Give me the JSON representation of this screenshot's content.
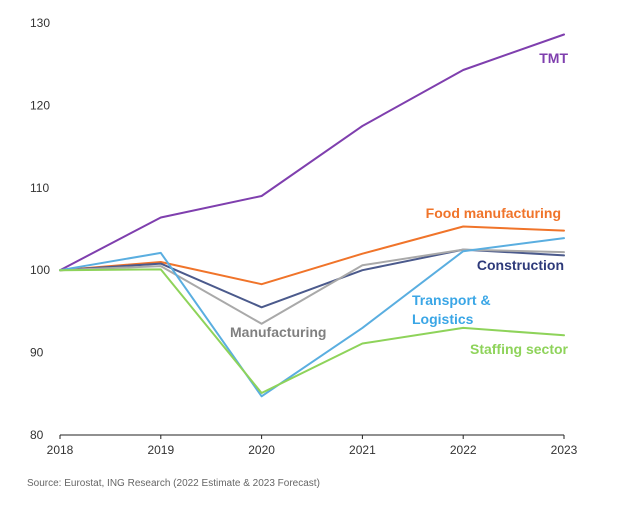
{
  "chart_data": {
    "type": "line",
    "title": "",
    "xlabel": "",
    "ylabel": "",
    "x": [
      "2018",
      "2019",
      "2020",
      "2021",
      "2022",
      "2023"
    ],
    "ylim": [
      80,
      130
    ],
    "yticks": [
      "80",
      "90",
      "100",
      "110",
      "120",
      "130"
    ],
    "grid": false,
    "series": [
      {
        "name": "TMT",
        "color": "#7f3fae",
        "values": [
          100,
          106.4,
          109,
          117.5,
          124.3,
          128.6
        ]
      },
      {
        "name": "Food manufacturing",
        "color": "#f0742a",
        "values": [
          100,
          101,
          98.3,
          102,
          105.3,
          104.8
        ]
      },
      {
        "name": "Construction",
        "color": "#4b5a8c",
        "values": [
          100,
          100.8,
          95.5,
          100,
          102.5,
          101.8
        ]
      },
      {
        "name": "Manufacturing",
        "color": "#a9a9a9",
        "values": [
          100,
          100.5,
          93.5,
          100.6,
          102.5,
          102.2
        ]
      },
      {
        "name": "Transport  & Logistics",
        "color": "#5aaee0",
        "values": [
          100,
          102.1,
          84.7,
          93,
          102.3,
          103.9
        ]
      },
      {
        "name": "Staffing sector",
        "color": "#8ed35a",
        "values": [
          100,
          100.1,
          85.1,
          91.1,
          93,
          92.1
        ]
      }
    ],
    "labels": [
      {
        "series": "TMT",
        "lines": [
          "TMT"
        ],
        "color": "#7f3fae"
      },
      {
        "series": "Food manufacturing",
        "lines": [
          "Food manufacturing"
        ],
        "color": "#f0742a"
      },
      {
        "series": "Construction",
        "lines": [
          "Construction"
        ],
        "color": "#2e3a7a"
      },
      {
        "series": "Manufacturing",
        "lines": [
          "Manufacturing"
        ],
        "color": "#808080"
      },
      {
        "series": "Transport  & Logistics",
        "lines": [
          "Transport  &",
          "Logistics"
        ],
        "color": "#3aa6e6"
      },
      {
        "series": "Staffing sector",
        "lines": [
          "Staffing sector"
        ],
        "color": "#8ed35a"
      }
    ],
    "source": "Source: Eurostat, ING Research (2022 Estimate & 2023 Forecast)"
  }
}
